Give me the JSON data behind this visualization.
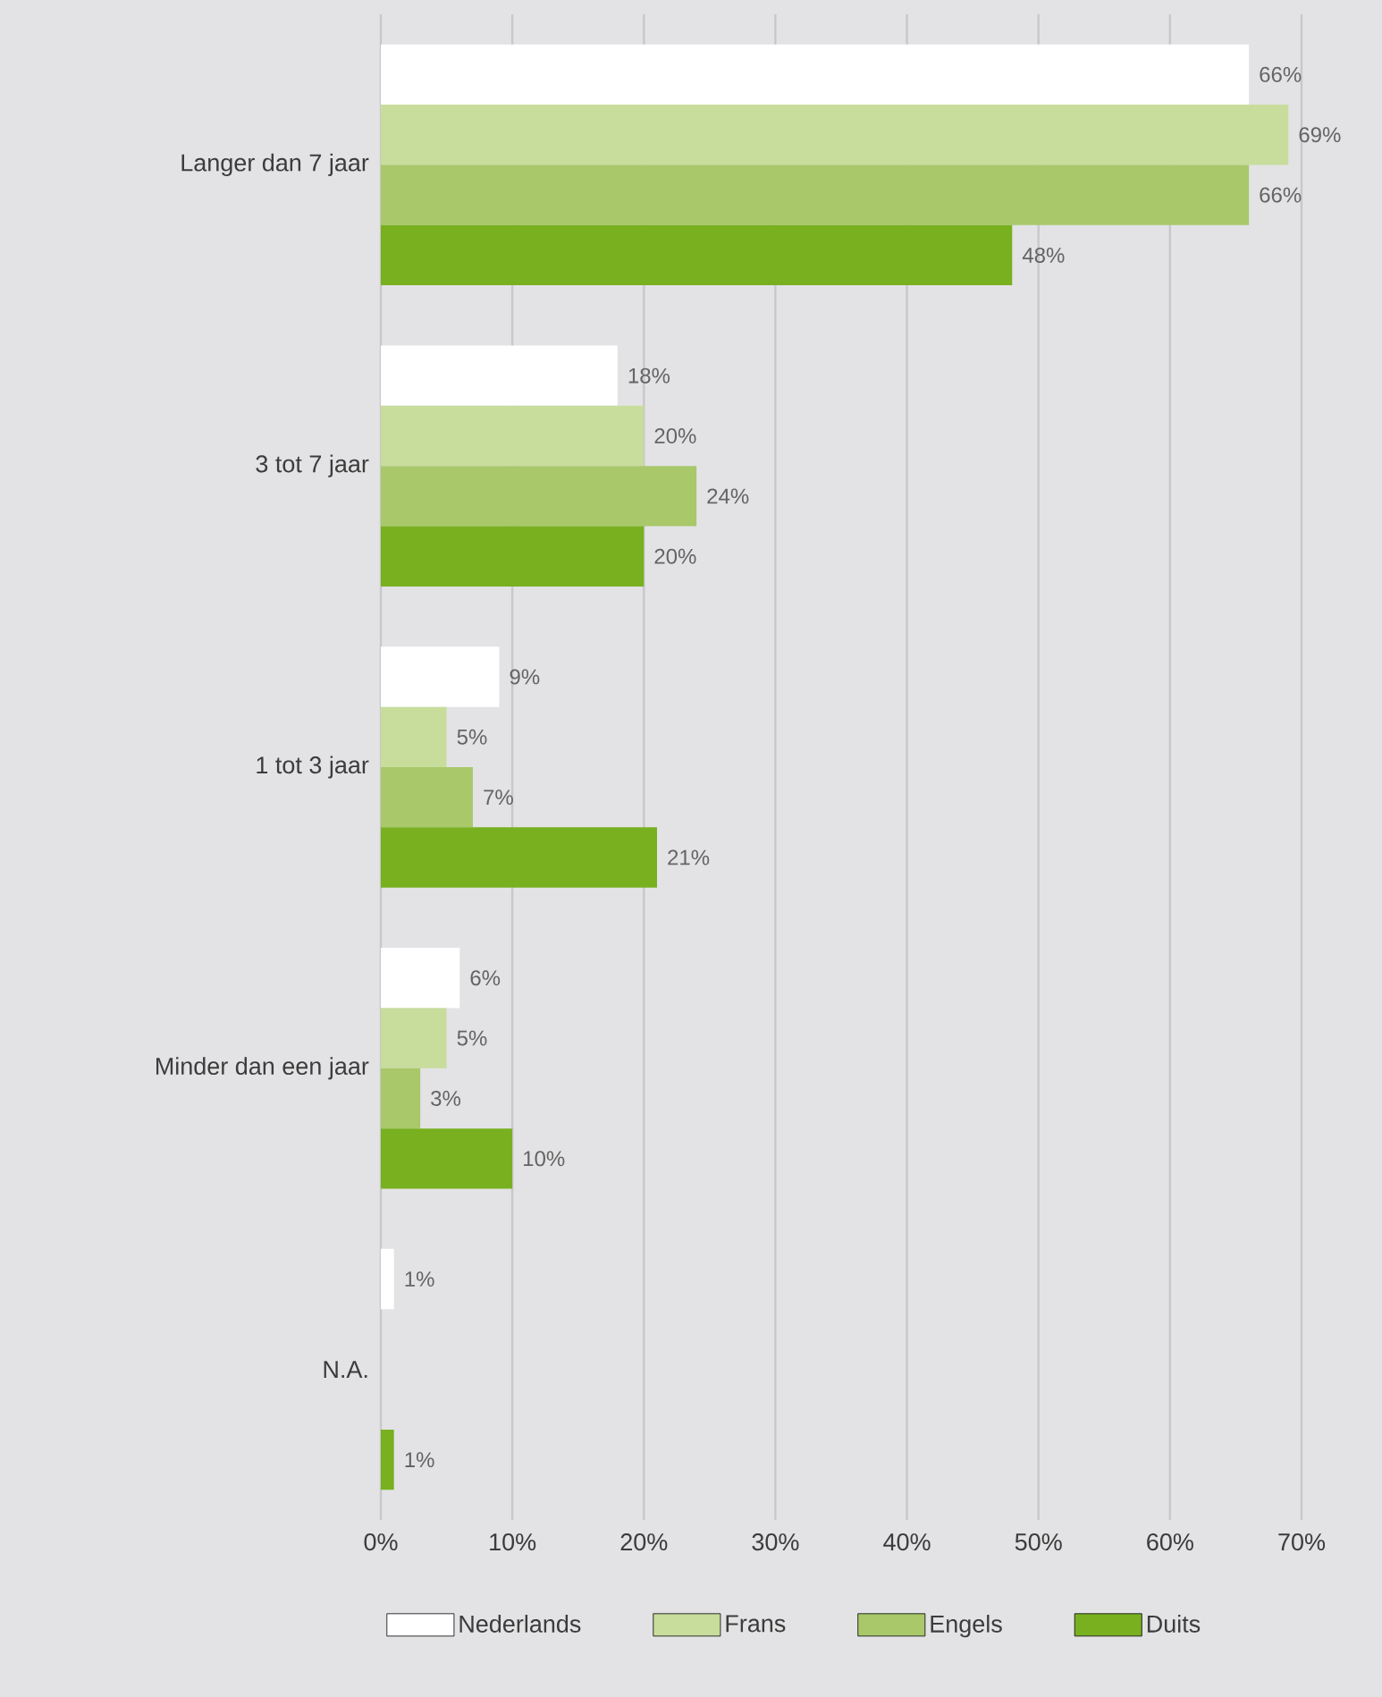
{
  "chart_data": {
    "type": "bar",
    "orientation": "horizontal",
    "categories": [
      "Langer dan 7 jaar",
      "3 tot 7 jaar",
      "1 tot 3 jaar",
      "Minder dan een jaar",
      "N.A."
    ],
    "series": [
      {
        "name": "Nederlands",
        "color": "#ffffff",
        "values": [
          66,
          18,
          9,
          6,
          1
        ],
        "value_labels": [
          "66%",
          "18%",
          "9%",
          "6%",
          "1%"
        ]
      },
      {
        "name": "Frans",
        "color": "#c8dc9c",
        "values": [
          69,
          20,
          5,
          5,
          null
        ],
        "value_labels": [
          "69%",
          "20%",
          "5%",
          "5%",
          null
        ]
      },
      {
        "name": "Engels",
        "color": "#a8c86a",
        "values": [
          66,
          24,
          7,
          3,
          null
        ],
        "value_labels": [
          "66%",
          "24%",
          "7%",
          "3%",
          null
        ]
      },
      {
        "name": "Duits",
        "color": "#78b020",
        "values": [
          48,
          20,
          21,
          10,
          1
        ],
        "value_labels": [
          "48%",
          "20%",
          "21%",
          "10%",
          "1%"
        ]
      }
    ],
    "xlim": [
      0,
      70
    ],
    "xticks": [
      {
        "value": 0,
        "label": "0%"
      },
      {
        "value": 10,
        "label": "10%"
      },
      {
        "value": 20,
        "label": "20%"
      },
      {
        "value": 30,
        "label": "30%"
      },
      {
        "value": 40,
        "label": "40%"
      },
      {
        "value": 50,
        "label": "50%"
      },
      {
        "value": 60,
        "label": "60%"
      },
      {
        "value": 70,
        "label": "70%"
      }
    ],
    "grid": "x",
    "legend": "bottom"
  }
}
